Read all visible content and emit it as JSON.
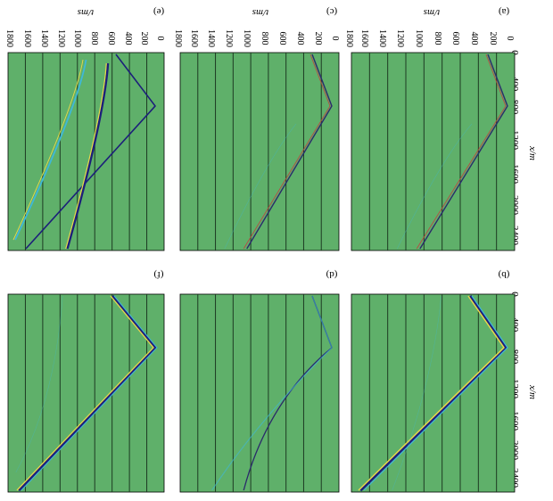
{
  "figure": {
    "panel_letters": [
      "(a)",
      "(b)",
      "(c)",
      "(d)",
      "(e)",
      "(f)"
    ],
    "x_axis_label": "x/m",
    "t_axis_label": "t/ms",
    "x_ticks": [
      "0",
      "400",
      "800",
      "1200",
      "1600",
      "2000",
      "2400"
    ],
    "t_ticks": [
      "0",
      "200",
      "400",
      "600",
      "800",
      "1000",
      "1200",
      "1400",
      "1600",
      "1800"
    ],
    "background_color": "#5fb06a",
    "grid_color": "#1d3a22",
    "wavelet_colors": [
      "#1c1f7a",
      "#e8d84a",
      "#3fb8d8",
      "#c04040"
    ]
  }
}
